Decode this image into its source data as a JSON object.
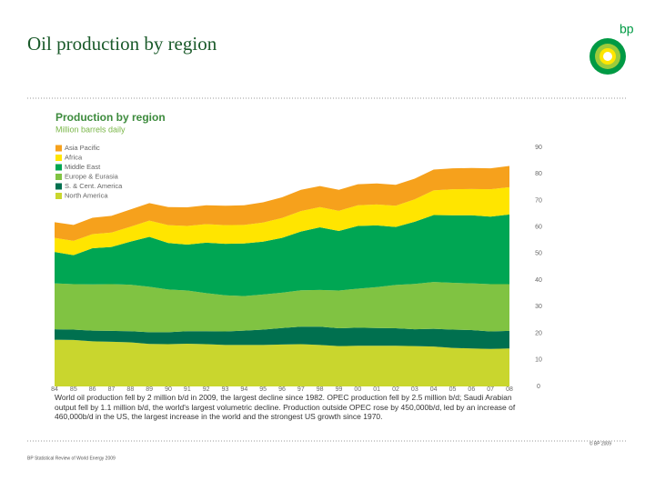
{
  "slide": {
    "title": "Oil production by region",
    "logo": "bp",
    "copyright": "© BP 2009",
    "source": "BP Statistical Review of World Energy 2009"
  },
  "chart_data": {
    "type": "stacked-area",
    "title": "Production by region",
    "subtitle": "Million barrels daily",
    "annotation": "World oil production fell by 2 million b/d in 2009, the largest decline since 1982. OPEC production fell by 2.5 million b/d; Saudi Arabian output fell by 1.1 million b/d, the world's largest volumetric decline. Production outside OPEC rose by 450,000b/d, led by an increase of 460,000b/d in the US, the largest increase in the world and the strongest US growth since 1970.",
    "categories": [
      "84",
      "85",
      "86",
      "87",
      "88",
      "89",
      "90",
      "91",
      "92",
      "93",
      "94",
      "95",
      "96",
      "97",
      "98",
      "99",
      "00",
      "01",
      "02",
      "03",
      "04",
      "05",
      "06",
      "07",
      "08"
    ],
    "series": [
      {
        "name": "North America",
        "color": "#c9d62e",
        "values": [
          17.6,
          17.5,
          17.0,
          16.8,
          16.6,
          16.0,
          15.9,
          16.1,
          15.9,
          15.6,
          15.6,
          15.6,
          15.8,
          15.9,
          15.6,
          15.2,
          15.3,
          15.3,
          15.3,
          15.2,
          15.0,
          14.5,
          14.3,
          14.1,
          14.3
        ]
      },
      {
        "name": "S. & Cent. America",
        "color": "#00704f",
        "values": [
          3.9,
          3.9,
          4.0,
          4.1,
          4.2,
          4.4,
          4.5,
          4.7,
          4.9,
          5.1,
          5.4,
          5.8,
          6.2,
          6.6,
          6.9,
          6.7,
          6.8,
          6.7,
          6.6,
          6.3,
          6.7,
          6.9,
          6.9,
          6.6,
          6.6
        ]
      },
      {
        "name": "Europe & Eurasia",
        "color": "#80c342",
        "values": [
          17.3,
          17.1,
          17.4,
          17.6,
          17.5,
          17.1,
          16.1,
          15.3,
          14.3,
          13.6,
          13.0,
          13.2,
          13.3,
          13.7,
          13.8,
          14.2,
          14.7,
          15.4,
          16.3,
          17.1,
          17.6,
          17.6,
          17.6,
          17.8,
          17.6
        ]
      },
      {
        "name": "Middle East",
        "color": "#00a653",
        "values": [
          11.8,
          10.9,
          13.6,
          14.0,
          16.2,
          18.8,
          17.5,
          17.3,
          19.0,
          19.4,
          19.8,
          19.9,
          20.6,
          22.1,
          23.6,
          22.4,
          23.6,
          23.2,
          21.8,
          23.4,
          25.2,
          25.4,
          25.6,
          25.4,
          26.2
        ]
      },
      {
        "name": "Africa",
        "color": "#ffe500",
        "values": [
          5.3,
          5.4,
          5.3,
          5.4,
          5.6,
          6.1,
          6.7,
          7.0,
          7.0,
          7.0,
          7.0,
          7.2,
          7.5,
          7.7,
          7.6,
          7.6,
          7.8,
          7.9,
          8.0,
          8.4,
          9.3,
          9.8,
          9.9,
          10.3,
          10.3
        ]
      },
      {
        "name": "Asia Pacific",
        "color": "#f6a11c",
        "values": [
          5.9,
          6.0,
          6.2,
          6.3,
          6.5,
          6.6,
          6.8,
          7.0,
          7.1,
          7.3,
          7.4,
          7.6,
          7.8,
          8.0,
          7.9,
          7.9,
          7.9,
          7.9,
          7.9,
          7.8,
          7.8,
          7.9,
          7.9,
          7.9,
          8.0
        ]
      }
    ],
    "ylim": [
      0,
      90
    ],
    "yticks": [
      0,
      10,
      20,
      30,
      40,
      50,
      60,
      70,
      80,
      90
    ]
  }
}
